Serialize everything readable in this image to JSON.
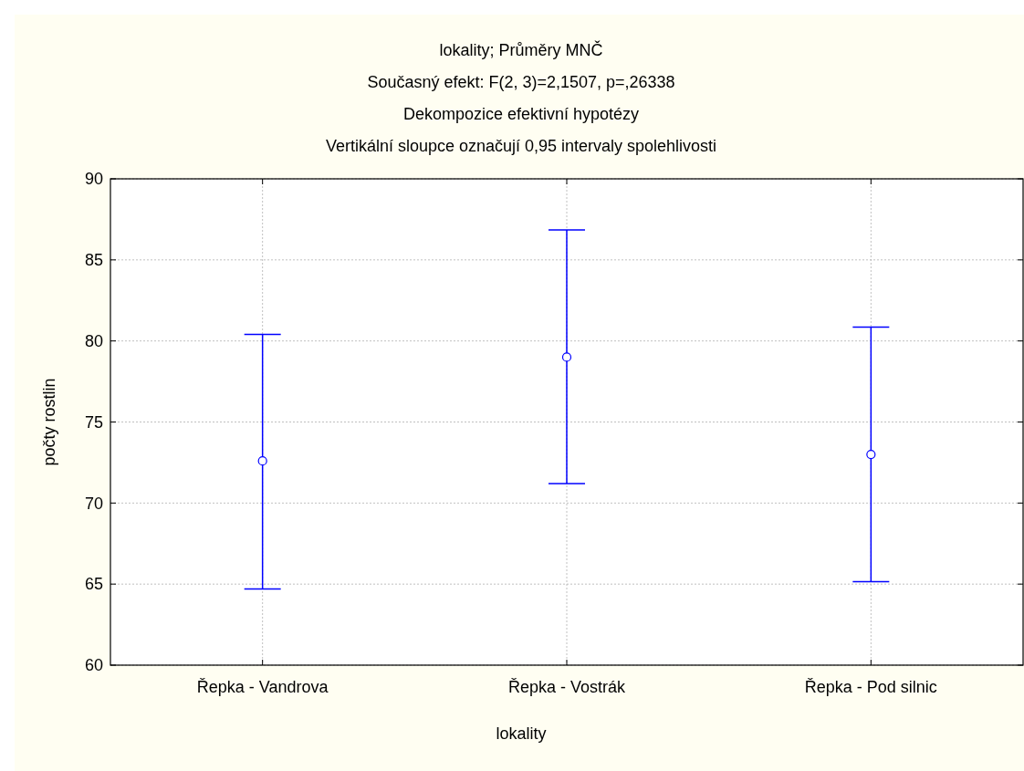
{
  "chart_data": {
    "type": "scatter",
    "title": "lokality; Průměry MNČ",
    "subtitle": "Současný efekt: F(2, 3)=2,1507, p=,26338\nDekompozice efektivní hypotézy\nVertikální sloupce označují 0,95 intervaly spolehlivosti",
    "xlabel": "lokality",
    "ylabel": "počty rostlin",
    "categories": [
      "Řepka - Vandrova",
      "Řepka - Vostrák",
      "Řepka - Pod silnic"
    ],
    "values": [
      72.6,
      79.0,
      73.0
    ],
    "errors": [
      [
        64.7,
        80.4
      ],
      [
        71.2,
        86.85
      ],
      [
        65.15,
        80.85
      ]
    ],
    "color": "#0000ff",
    "marker": "circle",
    "ylim": [
      60,
      90
    ],
    "yticks": [
      60,
      65,
      70,
      75,
      80,
      85,
      90
    ],
    "grid": true
  }
}
